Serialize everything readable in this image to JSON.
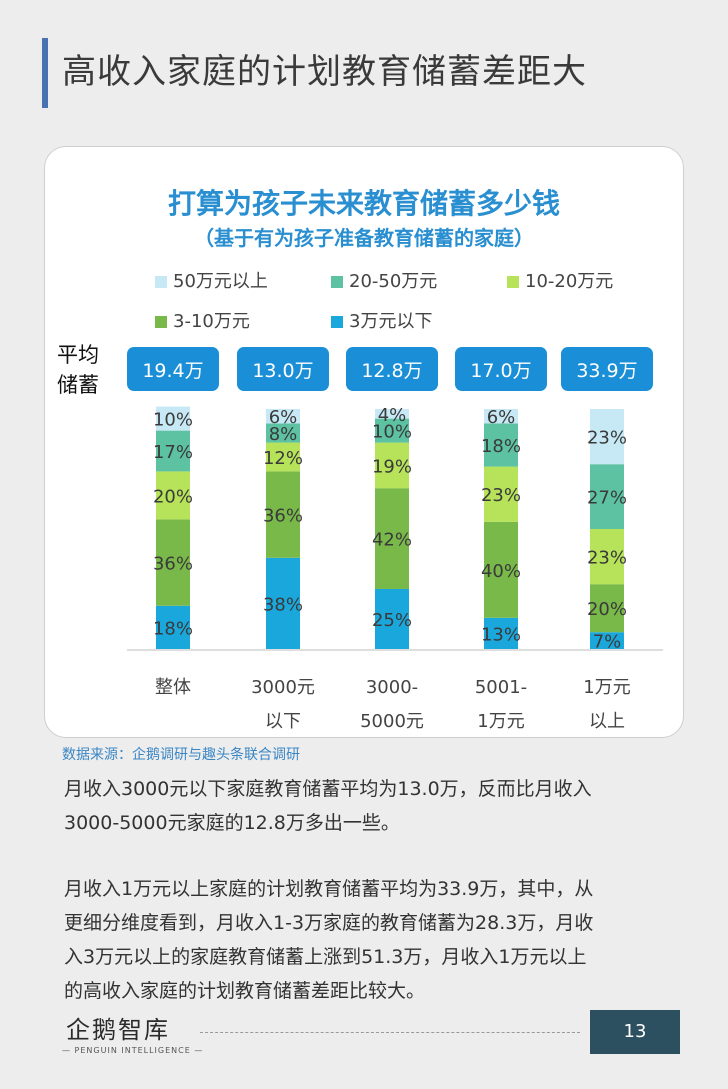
{
  "page": {
    "title": "高收入家庭的计划教育储蓄差距大",
    "page_number": "13"
  },
  "source": "数据来源：企鹅调研与趣头条联合调研",
  "logo": {
    "name": "企鹅智库",
    "tagline": "— PENGUIN INTELLIGENCE —"
  },
  "paragraphs": [
    [
      "月收入3000元以下家庭教育储蓄平均为13.0万，反而比月收入",
      "3000-5000元家庭的12.8万多出一些。"
    ],
    [
      "月收入1万元以上家庭的计划教育储蓄平均为33.9万，其中，从",
      "更细分维度看到，月收入1-3万家庭的教育储蓄为28.3万，月收",
      "入3万元以上的家庭教育储蓄上涨到51.3万，月收入1万元以上",
      "的高收入家庭的计划教育储蓄差距比较大。"
    ]
  ],
  "chart_data": {
    "type": "bar",
    "stacked": true,
    "percent_stacked": true,
    "title": "打算为孩子未来教育储蓄多少钱",
    "subtitle": "（基于有为孩子准备教育储蓄的家庭）",
    "avg_label": "平均\n储蓄",
    "categories": [
      "整体",
      "3000元\n以下",
      "3000-\n5000元",
      "5001-\n1万元",
      "1万元\n以上"
    ],
    "averages": [
      "19.4万",
      "13.0万",
      "12.8万",
      "17.0万",
      "33.9万"
    ],
    "legend_placement": "top",
    "legend_order": [
      "50万元以上",
      "20-50万元",
      "10-20万元",
      "3-10万元",
      "3万元以下"
    ],
    "series": [
      {
        "name": "3万元以下",
        "color": "#1aa8dc",
        "values": [
          18,
          38,
          25,
          13,
          7
        ]
      },
      {
        "name": "3-10万元",
        "color": "#79b94a",
        "values": [
          36,
          36,
          42,
          40,
          20
        ]
      },
      {
        "name": "10-20万元",
        "color": "#b6e35a",
        "values": [
          20,
          12,
          19,
          23,
          23
        ]
      },
      {
        "name": "20-50万元",
        "color": "#5cc2a2",
        "values": [
          17,
          8,
          10,
          18,
          27
        ]
      },
      {
        "name": "50万元以上",
        "color": "#c7e9f6",
        "values": [
          10,
          6,
          4,
          6,
          23
        ]
      }
    ],
    "ylim": [
      0,
      100
    ],
    "grid": false,
    "colors": {
      "title": "#2a8fd1",
      "badge": "#1a8fd8",
      "badge_text": "#ffffff"
    }
  }
}
